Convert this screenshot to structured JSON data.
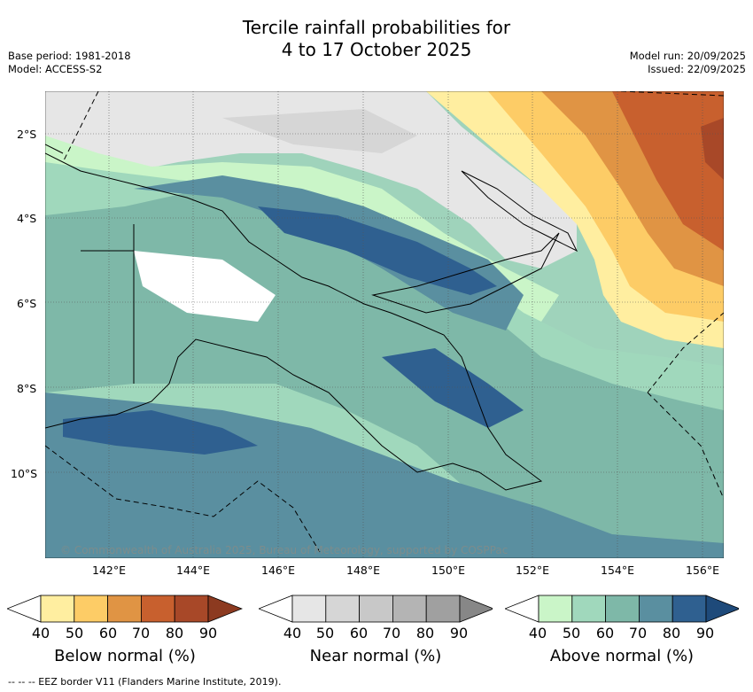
{
  "header": {
    "title_line1": "Tercile rainfall probabilities for",
    "title_line2": "4 to 17 October 2025",
    "base_period": "Base period: 1981-2018",
    "model": "Model: ACCESS-S2",
    "model_run": "Model run: 20/09/2025",
    "issued": "Issued: 22/09/2025"
  },
  "map": {
    "lat_labels": [
      "2°S",
      "4°S",
      "6°S",
      "8°S",
      "10°S"
    ],
    "lon_labels": [
      "142°E",
      "144°E",
      "146°E",
      "148°E",
      "150°E",
      "152°E",
      "154°E",
      "156°E"
    ],
    "copyright": "© Commonwealth of Australia 2025, Bureau of Meteorology, supported by COSPPac"
  },
  "legend": {
    "below": {
      "label": "Below normal (%)",
      "ticks": [
        "40",
        "50",
        "60",
        "70",
        "80",
        "90"
      ],
      "colors": [
        "#ffffff",
        "#ffeea0",
        "#fdcc66",
        "#e09444",
        "#c8602e",
        "#a84828",
        "#8c3a20"
      ]
    },
    "near": {
      "label": "Near normal (%)",
      "ticks": [
        "40",
        "50",
        "60",
        "70",
        "80",
        "90"
      ],
      "colors": [
        "#ffffff",
        "#e6e6e6",
        "#d6d6d6",
        "#c8c8c8",
        "#b4b4b4",
        "#a0a0a0",
        "#878787"
      ]
    },
    "above": {
      "label": "Above normal (%)",
      "ticks": [
        "40",
        "50",
        "60",
        "70",
        "80",
        "90"
      ],
      "colors": [
        "#ffffff",
        "#caf5c8",
        "#a0d8bc",
        "#7eb8a8",
        "#5a8fa0",
        "#2f6090",
        "#1e4a7a"
      ]
    }
  },
  "footer": {
    "eez_note": "--  --  -- EEZ border V11 (Flanders Marine Institute, 2019)."
  }
}
